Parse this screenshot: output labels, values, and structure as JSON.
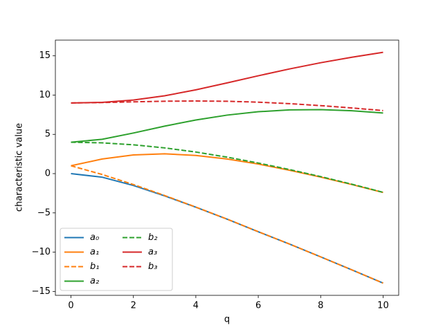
{
  "chart_data": {
    "type": "line",
    "xlabel": "q",
    "ylabel": "characteristic value",
    "x": [
      0,
      1,
      2,
      3,
      4,
      5,
      6,
      7,
      8,
      9,
      10
    ],
    "xlim": [
      -0.5,
      10.5
    ],
    "ylim": [
      -15.5,
      17.0
    ],
    "xticks": [
      0,
      2,
      4,
      6,
      8,
      10
    ],
    "yticks": [
      {
        "value": -15,
        "label": "−15"
      },
      {
        "value": -10,
        "label": "−10"
      },
      {
        "value": -5,
        "label": "−5"
      },
      0,
      5,
      10,
      15
    ],
    "legend": "lower left",
    "legend_columns": 2,
    "series": [
      {
        "name": "a₀",
        "color": "#1f77b4",
        "dashed": false,
        "values": [
          0,
          -0.455,
          -1.514,
          -2.834,
          -4.28,
          -5.8,
          -7.4,
          -8.97,
          -10.6,
          -12.26,
          -13.94
        ]
      },
      {
        "name": "a₁",
        "color": "#ff7f0e",
        "dashed": false,
        "values": [
          1,
          1.859,
          2.379,
          2.519,
          2.318,
          1.858,
          1.22,
          0.43,
          -0.44,
          -1.39,
          -2.4
        ]
      },
      {
        "name": "b₁",
        "color": "#ff7f0e",
        "dashed": true,
        "values": [
          1,
          -0.11,
          -1.391,
          -2.785,
          -4.26,
          -5.79,
          -7.39,
          -8.97,
          -10.6,
          -12.26,
          -13.94
        ]
      },
      {
        "name": "a₂",
        "color": "#2ca02c",
        "dashed": false,
        "values": [
          4,
          4.371,
          5.172,
          6.048,
          6.829,
          7.449,
          7.88,
          8.11,
          8.15,
          8.0,
          7.72
        ]
      },
      {
        "name": "b₂",
        "color": "#2ca02c",
        "dashed": true,
        "values": [
          4,
          3.917,
          3.672,
          3.277,
          2.748,
          2.1,
          1.35,
          0.52,
          -0.38,
          -1.35,
          -2.38
        ]
      },
      {
        "name": "a₃",
        "color": "#d62728",
        "dashed": false,
        "values": [
          9,
          9.078,
          9.366,
          9.91,
          10.67,
          11.55,
          12.46,
          13.33,
          14.12,
          14.82,
          15.45
        ]
      },
      {
        "name": "b₃",
        "color": "#d62728",
        "dashed": true,
        "values": [
          9,
          9.048,
          9.141,
          9.219,
          9.247,
          9.213,
          9.1,
          8.91,
          8.66,
          8.36,
          8.03
        ]
      }
    ]
  }
}
